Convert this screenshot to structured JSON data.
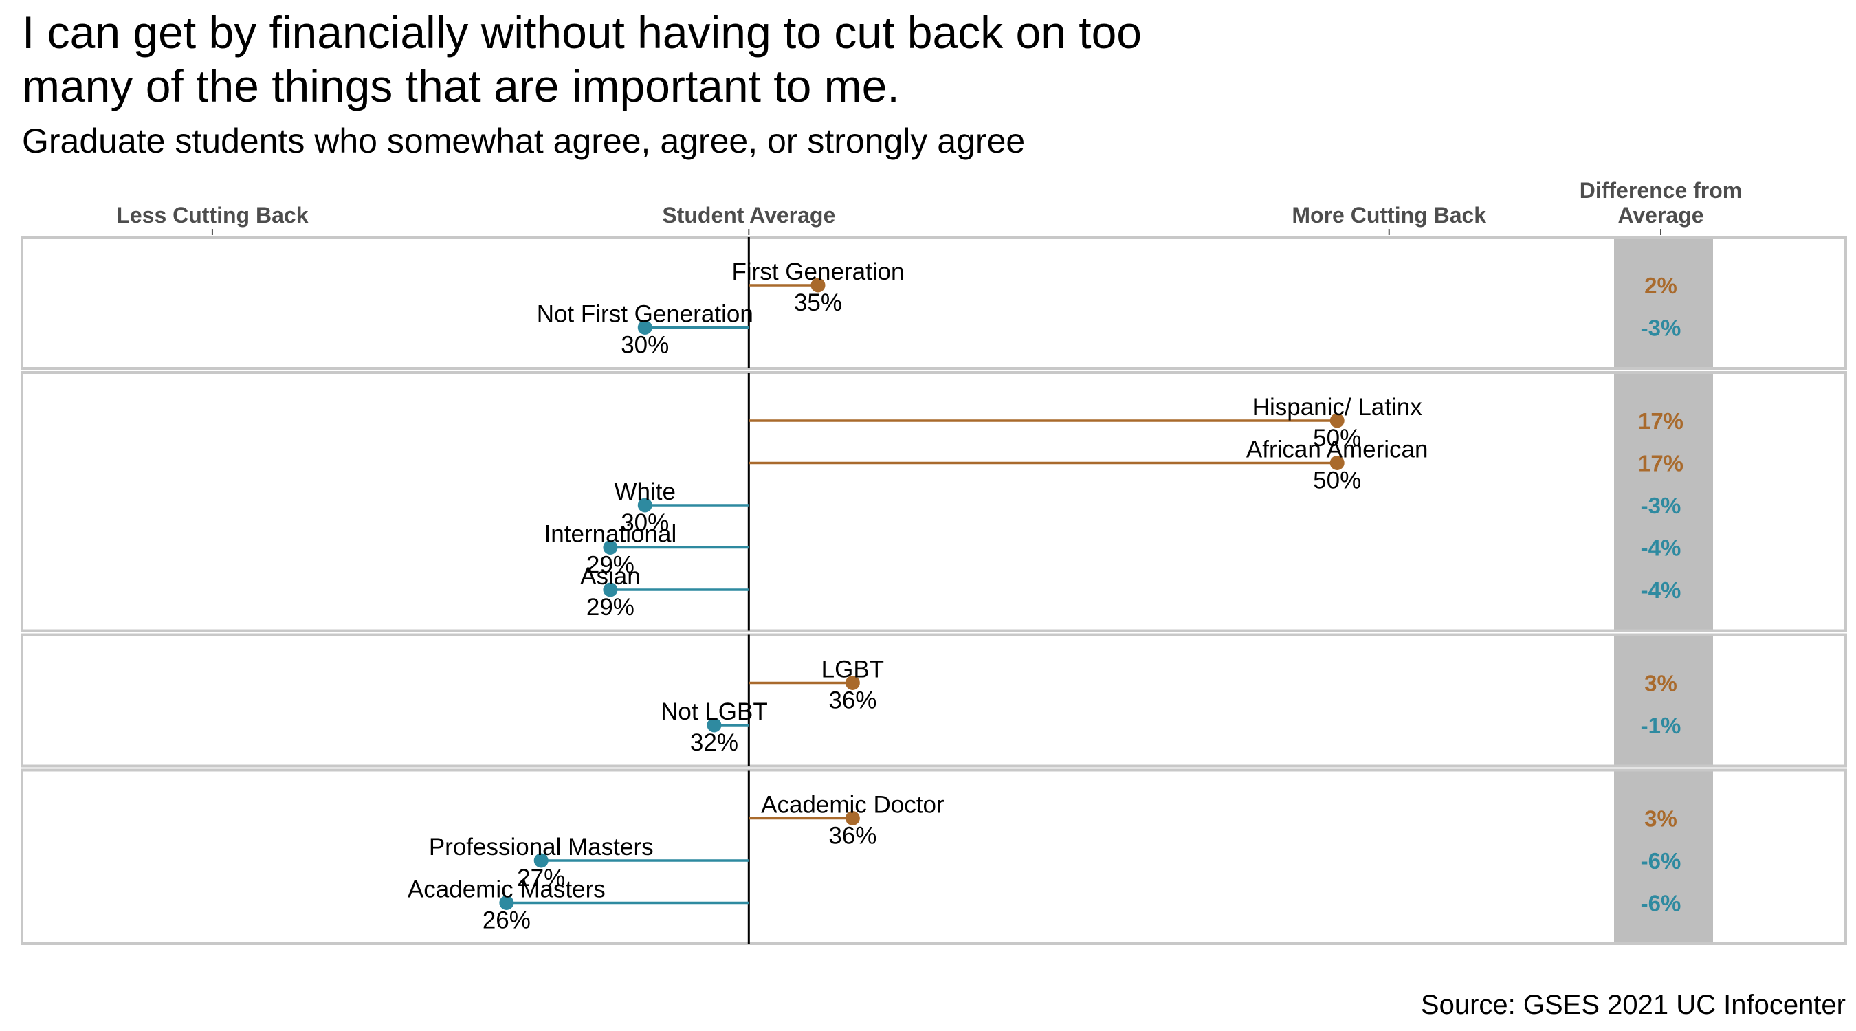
{
  "title_line1": "I can get by financially without having to cut back on too",
  "title_line2": "many of the things that are important to me.",
  "subtitle": "Graduate students who somewhat agree, agree, or strongly agree",
  "source": "Source: GSES 2021 UC Infocenter",
  "colors": {
    "above": "#a96a2c",
    "below": "#2e8aa0",
    "panel_shade": "#bebebe",
    "grid": "#c8c8c8",
    "avg_line": "#000000"
  },
  "chart_data": {
    "type": "lollipop",
    "title": "I can get by financially without having to cut back on too many of the things that are important to me.",
    "subtitle": "Graduate students who somewhat agree, agree, or strongly agree",
    "baseline": 33,
    "xlim": [
      12,
      58
    ],
    "x_ticks": [
      {
        "value": 17.5,
        "label": "Less Cutting Back"
      },
      {
        "value": 33,
        "label": "Student Average"
      },
      {
        "value": 51.5,
        "label": "More Cutting Back"
      }
    ],
    "diff_header_line1": "Difference from",
    "diff_header_line2": "Average",
    "units": "%",
    "panels": [
      {
        "groups": [
          {
            "name": "First Generation",
            "value": 35,
            "label": "35%",
            "diff": "2%"
          },
          {
            "name": "Not First Generation",
            "value": 30,
            "label": "30%",
            "diff": "-3%"
          }
        ]
      },
      {
        "groups": [
          {
            "name": "Hispanic/ Latinx",
            "value": 50,
            "label": "50%",
            "diff": "17%"
          },
          {
            "name": "African American",
            "value": 50,
            "label": "50%",
            "diff": "17%"
          },
          {
            "name": "White",
            "value": 30,
            "label": "30%",
            "diff": "-3%"
          },
          {
            "name": "International",
            "value": 29,
            "label": "29%",
            "diff": "-4%"
          },
          {
            "name": "Asian",
            "value": 29,
            "label": "29%",
            "diff": "-4%"
          }
        ]
      },
      {
        "groups": [
          {
            "name": "LGBT",
            "value": 36,
            "label": "36%",
            "diff": "3%"
          },
          {
            "name": "Not LGBT",
            "value": 32,
            "label": "32%",
            "diff": "-1%"
          }
        ]
      },
      {
        "groups": [
          {
            "name": "Academic Doctor",
            "value": 36,
            "label": "36%",
            "diff": "3%"
          },
          {
            "name": "Professional Masters",
            "value": 27,
            "label": "27%",
            "diff": "-6%"
          },
          {
            "name": "Academic Masters",
            "value": 26,
            "label": "26%",
            "diff": "-6%"
          }
        ]
      }
    ]
  }
}
